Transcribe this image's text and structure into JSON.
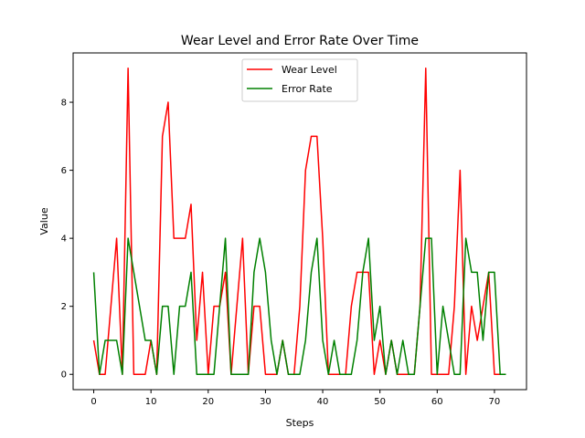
{
  "chart_data": {
    "type": "line",
    "title": "Wear Level and Error Rate Over Time",
    "xlabel": "Steps",
    "ylabel": "Value",
    "xlim": [
      -3.6,
      75.6
    ],
    "ylim": [
      -0.45,
      9.45
    ],
    "xticks": [
      0,
      10,
      20,
      30,
      40,
      50,
      60,
      70
    ],
    "yticks": [
      0,
      2,
      4,
      6,
      8
    ],
    "grid": false,
    "legend_position": "top-center",
    "x": [
      0,
      1,
      2,
      3,
      4,
      5,
      6,
      7,
      8,
      9,
      10,
      11,
      12,
      13,
      14,
      15,
      16,
      17,
      18,
      19,
      20,
      21,
      22,
      23,
      24,
      25,
      26,
      27,
      28,
      29,
      30,
      31,
      32,
      33,
      34,
      35,
      36,
      37,
      38,
      39,
      40,
      41,
      42,
      43,
      44,
      45,
      46,
      47,
      48,
      49,
      50,
      51,
      52,
      53,
      54,
      55,
      56,
      57,
      58,
      59,
      60,
      61,
      62,
      63,
      64,
      65,
      66,
      67,
      68,
      69,
      70,
      71,
      72
    ],
    "series": [
      {
        "name": "Wear Level",
        "color": "#ff0000",
        "values": [
          1,
          0,
          0,
          2,
          4,
          0,
          9,
          0,
          0,
          0,
          1,
          0,
          7,
          8,
          4,
          4,
          4,
          5,
          1,
          3,
          0,
          2,
          2,
          3,
          0,
          2,
          4,
          0,
          2,
          2,
          0,
          0,
          0,
          1,
          0,
          0,
          2,
          6,
          7,
          7,
          4,
          0,
          0,
          0,
          0,
          2,
          3,
          3,
          3,
          0,
          1,
          0,
          1,
          0,
          0,
          0,
          0,
          2,
          9,
          0,
          0,
          0,
          0,
          2,
          6,
          0,
          2,
          1,
          2,
          3,
          0,
          0,
          0
        ]
      },
      {
        "name": "Error Rate",
        "color": "#008000",
        "values": [
          3,
          0,
          1,
          1,
          1,
          0,
          4,
          3,
          2,
          1,
          1,
          0,
          2,
          2,
          0,
          2,
          2,
          3,
          0,
          0,
          0,
          0,
          2,
          4,
          0,
          0,
          0,
          0,
          3,
          4,
          3,
          1,
          0,
          1,
          0,
          0,
          0,
          1,
          3,
          4,
          1,
          0,
          1,
          0,
          0,
          0,
          1,
          3,
          4,
          1,
          2,
          0,
          1,
          0,
          1,
          0,
          0,
          2,
          4,
          4,
          0,
          2,
          1,
          0,
          0,
          4,
          3,
          3,
          1,
          3,
          3,
          0,
          0
        ]
      }
    ]
  }
}
